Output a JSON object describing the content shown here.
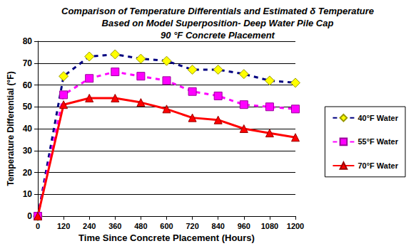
{
  "chart_data": {
    "type": "line",
    "title": [
      "Comparison of Temperature Differentials and Estimated δ Temperature",
      "Based on Model Superposition- Deep Water Pile Cap",
      "90 °F Concrete Placement"
    ],
    "x_label": "Time Since Concrete Placement (Hours)",
    "y_label": "Temperature Differential (°F)",
    "x": [
      0,
      120,
      240,
      360,
      480,
      600,
      720,
      840,
      960,
      1080,
      1200
    ],
    "series": [
      {
        "name": "40°F Water",
        "color": "#000080",
        "marker": "diamond",
        "line_style": "dashed",
        "values": [
          0,
          64,
          73,
          74,
          72,
          71,
          67,
          67,
          65,
          62,
          61
        ]
      },
      {
        "name": "55°F Water",
        "color": "#ff00ff",
        "marker": "square",
        "line_style": "dashed",
        "values": [
          0,
          55.5,
          63,
          66,
          64,
          62,
          57,
          55,
          51,
          50,
          49
        ]
      },
      {
        "name": "70°F Water",
        "color": "#ff0000",
        "marker": "triangle",
        "line_style": "solid",
        "values": [
          0,
          51,
          54,
          54,
          52,
          49,
          45,
          44,
          40,
          38,
          36
        ]
      }
    ],
    "xlim": [
      0,
      1200
    ],
    "xticks": [
      0,
      120,
      240,
      360,
      480,
      600,
      720,
      840,
      960,
      1080,
      1200
    ],
    "ylim": [
      0,
      80
    ],
    "yticks": [
      0,
      10,
      20,
      30,
      40,
      50,
      60,
      70,
      80
    ],
    "grid": true,
    "legend": "right"
  }
}
